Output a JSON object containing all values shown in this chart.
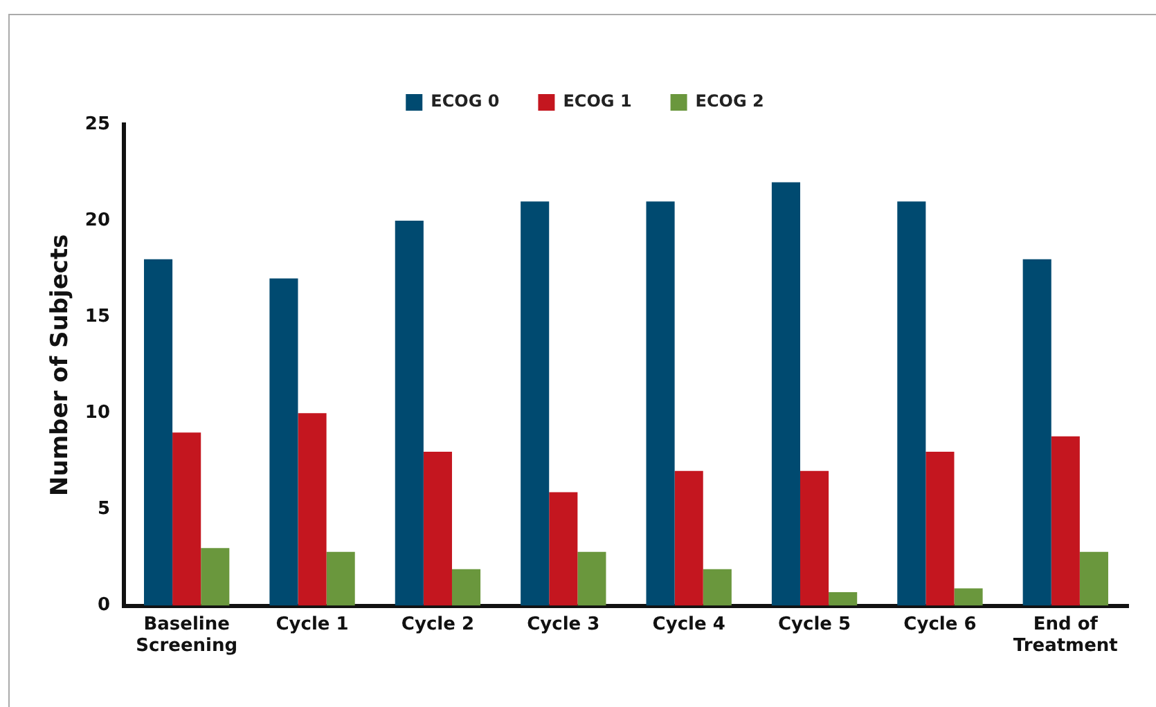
{
  "chart_data": {
    "type": "bar",
    "ylabel": "Number of Subjects",
    "categories": [
      "Baseline\nScreening",
      "Cycle 1",
      "Cycle 2",
      "Cycle 3",
      "Cycle 4",
      "Cycle 5",
      "Cycle 6",
      "End of\nTreatment"
    ],
    "series": [
      {
        "name": "ECOG 0",
        "color": "#004a70",
        "values": [
          18,
          17,
          20,
          21,
          21,
          22,
          21,
          18
        ]
      },
      {
        "name": "ECOG 1",
        "color": "#c4161f",
        "values": [
          9,
          10,
          8,
          5.9,
          7,
          7,
          8,
          8.8
        ]
      },
      {
        "name": "ECOG 2",
        "color": "#6a973d",
        "values": [
          3,
          2.8,
          1.9,
          2.8,
          1.9,
          0.7,
          0.9,
          2.8
        ]
      }
    ],
    "ylim": [
      0,
      25
    ],
    "yticks": [
      0,
      5,
      10,
      15,
      20,
      25
    ],
    "grid": false,
    "legend": "top"
  }
}
